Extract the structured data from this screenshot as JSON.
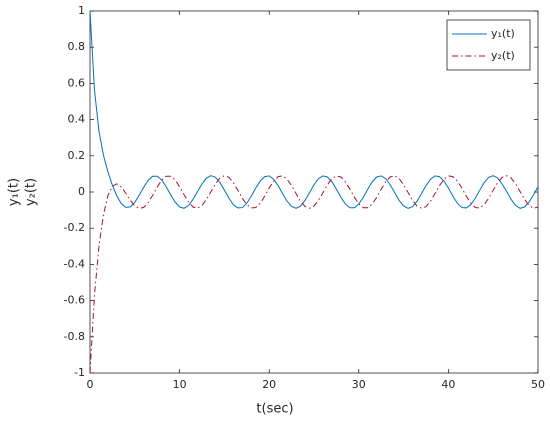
{
  "chart_data": {
    "type": "line",
    "xlabel": "t(sec)",
    "ylabel": [
      "y₁(t)",
      "y₂(t)"
    ],
    "x": [
      0,
      0.5,
      1,
      1.5,
      2,
      2.5,
      3,
      3.5,
      4,
      4.5,
      5,
      5.5,
      6,
      6.5,
      7,
      7.5,
      8,
      8.5,
      9,
      9.5,
      10,
      10.5,
      11,
      11.5,
      12,
      12.5,
      13,
      13.5,
      14,
      14.5,
      15,
      15.5,
      16,
      16.5,
      17,
      17.5,
      18,
      18.5,
      19,
      19.5,
      20,
      20.5,
      21,
      21.5,
      22,
      22.5,
      23,
      23.5,
      24,
      24.5,
      25,
      25.5,
      26,
      26.5,
      27,
      27.5,
      28,
      28.5,
      29,
      29.5,
      30,
      30.5,
      31,
      31.5,
      32,
      32.5,
      33,
      33.5,
      34,
      34.5,
      35,
      35.5,
      36,
      36.5,
      37,
      37.5,
      38,
      38.5,
      39,
      39.5,
      40,
      40.5,
      41,
      41.5,
      42,
      42.5,
      43,
      43.5,
      44,
      44.5,
      45,
      45.5,
      46,
      46.5,
      47,
      47.5,
      48,
      48.5,
      49,
      49.5,
      50
    ],
    "series": [
      {
        "name": "y₁(t)",
        "color": "#0072bd",
        "dash": "solid",
        "values": [
          1.0,
          0.563,
          0.336,
          0.203,
          0.111,
          0.037,
          -0.022,
          -0.065,
          -0.085,
          -0.082,
          -0.057,
          -0.017,
          0.027,
          0.065,
          0.087,
          0.087,
          0.067,
          0.029,
          -0.015,
          -0.056,
          -0.083,
          -0.09,
          -0.074,
          -0.041,
          0.002,
          0.045,
          0.077,
          0.09,
          0.081,
          0.052,
          0.01,
          -0.034,
          -0.07,
          -0.088,
          -0.086,
          -0.062,
          -0.023,
          0.022,
          0.061,
          0.085,
          0.089,
          0.07,
          0.035,
          -0.009,
          -0.051,
          -0.08,
          -0.09,
          -0.078,
          -0.046,
          -0.004,
          0.04,
          0.074,
          0.089,
          0.083,
          0.057,
          0.016,
          -0.028,
          -0.066,
          -0.087,
          -0.087,
          -0.066,
          -0.029,
          0.016,
          0.056,
          0.083,
          0.089,
          0.074,
          0.04,
          -0.003,
          -0.046,
          -0.078,
          -0.09,
          -0.081,
          -0.051,
          -0.009,
          0.035,
          0.07,
          0.089,
          0.085,
          0.061,
          0.022,
          -0.023,
          -0.062,
          -0.086,
          -0.088,
          -0.07,
          -0.034,
          0.01,
          0.052,
          0.081,
          0.09,
          0.077,
          0.045,
          0.003,
          -0.041,
          -0.074,
          -0.09,
          -0.083,
          -0.056,
          -0.015,
          0.029
        ]
      },
      {
        "name": "y₂(t)",
        "color": "#a2142f",
        "dash": "dashdot",
        "values": [
          -1.0,
          -0.569,
          -0.298,
          -0.126,
          -0.02,
          0.032,
          0.045,
          0.028,
          -0.007,
          -0.046,
          -0.077,
          -0.091,
          -0.085,
          -0.057,
          -0.017,
          0.027,
          0.065,
          0.087,
          0.087,
          0.067,
          0.029,
          -0.015,
          -0.056,
          -0.083,
          -0.09,
          -0.074,
          -0.041,
          0.002,
          0.045,
          0.077,
          0.09,
          0.081,
          0.052,
          0.01,
          -0.034,
          -0.07,
          -0.088,
          -0.086,
          -0.062,
          -0.023,
          0.022,
          0.061,
          0.085,
          0.089,
          0.07,
          0.035,
          -0.009,
          -0.051,
          -0.08,
          -0.09,
          -0.078,
          -0.046,
          -0.004,
          0.04,
          0.074,
          0.089,
          0.083,
          0.057,
          0.016,
          -0.028,
          -0.066,
          -0.087,
          -0.087,
          -0.066,
          -0.029,
          0.016,
          0.056,
          0.083,
          0.089,
          0.074,
          0.04,
          -0.003,
          -0.046,
          -0.078,
          -0.09,
          -0.081,
          -0.051,
          -0.009,
          0.035,
          0.07,
          0.089,
          0.085,
          0.061,
          0.022,
          -0.023,
          -0.062,
          -0.086,
          -0.088,
          -0.07,
          -0.034,
          0.01,
          0.052,
          0.081,
          0.09,
          0.077,
          0.045,
          0.003,
          -0.041,
          -0.074,
          -0.09,
          -0.083
        ]
      }
    ],
    "xlim": [
      0,
      50
    ],
    "xticks": [
      0,
      10,
      20,
      30,
      40,
      50
    ],
    "ylim": [
      -1,
      1
    ],
    "yticks": [
      -1,
      -0.8,
      -0.6,
      -0.4,
      -0.2,
      0,
      0.2,
      0.4,
      0.6,
      0.8,
      1
    ],
    "grid": false,
    "legend": "upper right"
  }
}
